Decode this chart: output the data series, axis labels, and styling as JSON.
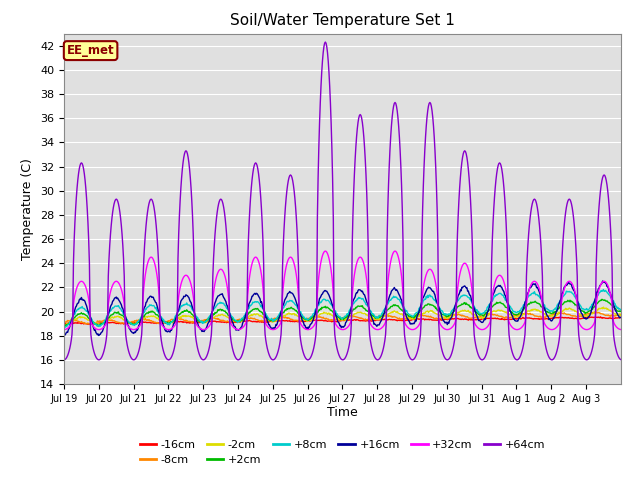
{
  "title": "Soil/Water Temperature Set 1",
  "xlabel": "Time",
  "ylabel": "Temperature (C)",
  "ylim": [
    14,
    43
  ],
  "yticks": [
    14,
    16,
    18,
    20,
    22,
    24,
    26,
    28,
    30,
    32,
    34,
    36,
    38,
    40,
    42
  ],
  "bg_color": "#e0e0e0",
  "grid_color": "#ffffff",
  "annotation_text": "EE_met",
  "annotation_bg": "#ffff99",
  "annotation_border": "#8b0000",
  "annotation_text_color": "#8b0000",
  "series_order": [
    "-16cm",
    "-8cm",
    "-2cm",
    "+2cm",
    "+8cm",
    "+16cm",
    "+32cm",
    "+64cm"
  ],
  "series_colors": {
    "-16cm": "#ff0000",
    "-8cm": "#ff8800",
    "-2cm": "#dddd00",
    "+2cm": "#00bb00",
    "+8cm": "#00cccc",
    "+16cm": "#000099",
    "+32cm": "#ff00ff",
    "+64cm": "#8800cc"
  },
  "xtick_labels": [
    "Jul 19",
    "Jul 20",
    "Jul 21",
    "Jul 22",
    "Jul 23",
    "Jul 24",
    "Jul 25",
    "Jul 26",
    "Jul 27",
    "Jul 28",
    "Jul 29",
    "Jul 30",
    "Jul 31",
    "Aug 1",
    "Aug 2",
    "Aug 3"
  ],
  "n_days": 16,
  "pts_per_day": 48,
  "legend_labels_row1": [
    "-16cm",
    "-8cm",
    "-2cm",
    "+2cm",
    "+8cm",
    "+16cm"
  ],
  "legend_labels_row2": [
    "+32cm",
    "+64cm"
  ]
}
